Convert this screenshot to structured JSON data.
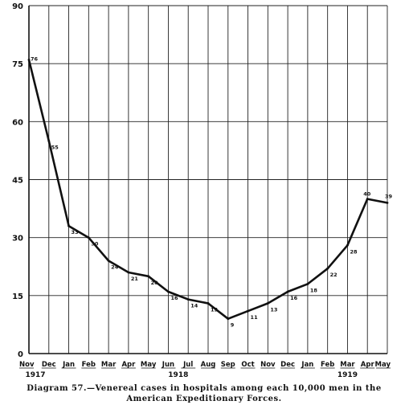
{
  "chart_data": {
    "type": "line",
    "title_line1": "Diagram 57.—Venereal cases in hospitals among each 10,000 men in the",
    "title_line2": "American Expeditionary Forces.",
    "ylim": [
      0,
      90
    ],
    "yticks": [
      0,
      15,
      30,
      45,
      60,
      75,
      90
    ],
    "grid": true,
    "categories": [
      "Nov",
      "Dec",
      "Jan",
      "Feb",
      "Mar",
      "Apr",
      "May",
      "Jun",
      "Jul",
      "Aug",
      "Sep",
      "Oct",
      "Nov",
      "Dec",
      "Jan",
      "Feb",
      "Mar",
      "Apr",
      "May"
    ],
    "years": [
      {
        "label": "1917",
        "start": 0,
        "end": 1
      },
      {
        "label": "1918",
        "start": 2,
        "end": 13
      },
      {
        "label": "1919",
        "start": 14,
        "end": 18
      }
    ],
    "series": [
      {
        "values": [
          76,
          55,
          33,
          30,
          24,
          21,
          20,
          16,
          14,
          13,
          9,
          11,
          13,
          16,
          18,
          22,
          28,
          40,
          39
        ],
        "labels": [
          "76",
          "55",
          "33",
          "30",
          "24",
          "21",
          "20",
          "16",
          "14",
          "13",
          "9",
          "11",
          "13",
          "16",
          "18",
          "22",
          "28",
          "40",
          "39"
        ]
      }
    ]
  }
}
